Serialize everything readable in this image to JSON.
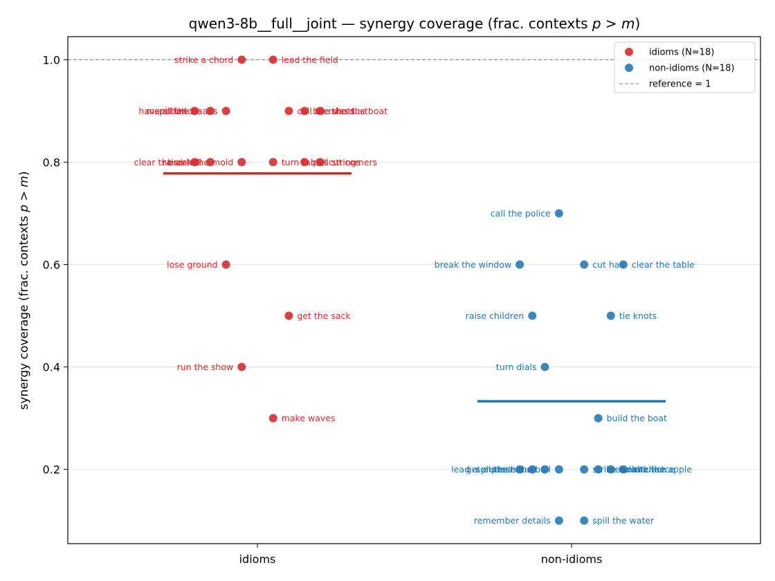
{
  "chart_data": {
    "type": "scatter",
    "title": "qwen3-8b__full__joint — synergy coverage  (frac. contexts p > m)",
    "xlabel": "",
    "ylabel": "synergy coverage  (frac. contexts p > m)",
    "categories": [
      "idioms",
      "non-idioms"
    ],
    "ylim": [
      0.055,
      1.045
    ],
    "yticks": [
      0.2,
      0.4,
      0.6,
      0.8,
      1.0
    ],
    "ytick_labels": [
      "0.2",
      "0.4",
      "0.6",
      "0.8",
      "1.0"
    ],
    "grid": true,
    "legend": {
      "position": "top-right",
      "entries": [
        "idioms (N=18)",
        "non-idioms (N=18)",
        "reference = 1"
      ]
    },
    "reference_line": {
      "y": 1.0,
      "label": "reference = 1",
      "color": "#999999"
    },
    "series": [
      {
        "name": "idioms (N=18)",
        "category": "idioms",
        "color": "#d62728",
        "mean": 0.778,
        "points": [
          {
            "label": "strike a chord",
            "y": 1.0,
            "offset": -0.05,
            "label_side": "left"
          },
          {
            "label": "lead the field",
            "y": 1.0,
            "offset": 0.05,
            "label_side": "right"
          },
          {
            "label": "have a ball",
            "y": 0.9,
            "offset": -0.2,
            "label_side": "left"
          },
          {
            "label": "mend fences",
            "y": 0.9,
            "offset": -0.15,
            "label_side": "left"
          },
          {
            "label": "spill the beans",
            "y": 0.9,
            "offset": -0.1,
            "label_side": "left"
          },
          {
            "label": "call the shots",
            "y": 0.9,
            "offset": 0.1,
            "label_side": "right"
          },
          {
            "label": "bite the dust",
            "y": 0.9,
            "offset": 0.15,
            "label_side": "right"
          },
          {
            "label": "miss the boat",
            "y": 0.9,
            "offset": 0.2,
            "label_side": "right"
          },
          {
            "label": "clear the air",
            "y": 0.8,
            "offset": -0.2,
            "label_side": "left"
          },
          {
            "label": "raise hell",
            "y": 0.8,
            "offset": -0.15,
            "label_side": "left"
          },
          {
            "label": "break the mold",
            "y": 0.8,
            "offset": -0.05,
            "label_side": "left"
          },
          {
            "label": "turn tables",
            "y": 0.8,
            "offset": 0.05,
            "label_side": "right"
          },
          {
            "label": "pull strings",
            "y": 0.8,
            "offset": 0.15,
            "label_side": "right"
          },
          {
            "label": "cut corners",
            "y": 0.8,
            "offset": 0.2,
            "label_side": "right"
          },
          {
            "label": "lose ground",
            "y": 0.6,
            "offset": -0.1,
            "label_side": "left"
          },
          {
            "label": "get the sack",
            "y": 0.5,
            "offset": 0.1,
            "label_side": "right"
          },
          {
            "label": "run the show",
            "y": 0.4,
            "offset": -0.05,
            "label_side": "left"
          },
          {
            "label": "make waves",
            "y": 0.3,
            "offset": 0.05,
            "label_side": "right"
          }
        ]
      },
      {
        "name": "non-idioms (N=18)",
        "category": "non-idioms",
        "color": "#1f77b4",
        "mean": 0.333,
        "points": [
          {
            "label": "call the police",
            "y": 0.7,
            "offset": -0.04,
            "label_side": "left"
          },
          {
            "label": "break the window",
            "y": 0.6,
            "offset": -0.165,
            "label_side": "left"
          },
          {
            "label": "cut hair",
            "y": 0.6,
            "offset": 0.04,
            "label_side": "right"
          },
          {
            "label": "clear the table",
            "y": 0.6,
            "offset": 0.165,
            "label_side": "right"
          },
          {
            "label": "raise children",
            "y": 0.5,
            "offset": -0.125,
            "label_side": "left"
          },
          {
            "label": "tie knots",
            "y": 0.5,
            "offset": 0.125,
            "label_side": "right"
          },
          {
            "label": "turn dials",
            "y": 0.4,
            "offset": -0.085,
            "label_side": "left"
          },
          {
            "label": "build the boat",
            "y": 0.3,
            "offset": 0.085,
            "label_side": "right"
          },
          {
            "label": "lead a protest",
            "y": 0.2,
            "offset": -0.165,
            "label_side": "left"
          },
          {
            "label": "get a present",
            "y": 0.2,
            "offset": -0.125,
            "label_side": "left"
          },
          {
            "label": "sell the house",
            "y": 0.2,
            "offset": -0.085,
            "label_side": "left"
          },
          {
            "label": "lose the ball",
            "y": 0.2,
            "offset": -0.04,
            "label_side": "left"
          },
          {
            "label": "strike a match",
            "y": 0.2,
            "offset": 0.04,
            "label_side": "right"
          },
          {
            "label": "mend the fence",
            "y": 0.2,
            "offset": 0.085,
            "label_side": "right"
          },
          {
            "label": "have lunch",
            "y": 0.2,
            "offset": 0.125,
            "label_side": "right"
          },
          {
            "label": "bite the apple",
            "y": 0.2,
            "offset": 0.165,
            "label_side": "right"
          },
          {
            "label": "remember details",
            "y": 0.1,
            "offset": -0.04,
            "label_side": "left"
          },
          {
            "label": "spill the water",
            "y": 0.1,
            "offset": 0.04,
            "label_side": "right"
          }
        ]
      }
    ]
  }
}
